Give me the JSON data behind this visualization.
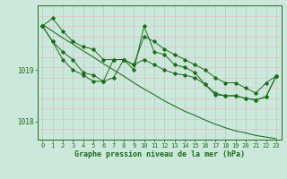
{
  "xlabel": "Graphe pression niveau de la mer (hPa)",
  "hours": [
    0,
    1,
    2,
    3,
    4,
    5,
    6,
    7,
    8,
    9,
    10,
    11,
    12,
    13,
    14,
    15,
    16,
    17,
    18,
    19,
    20,
    21,
    22,
    23
  ],
  "series_top": [
    1019.85,
    1020.0,
    1019.75,
    1019.55,
    1019.45,
    1019.4,
    1019.2,
    1019.2,
    1019.2,
    1019.1,
    1019.65,
    1019.55,
    1019.4,
    1019.3,
    1019.2,
    1019.1,
    1019.0,
    1018.85,
    1018.75,
    1018.75,
    1018.65,
    1018.55,
    1018.75,
    1018.88
  ],
  "series_mid": [
    1019.85,
    1019.55,
    1019.35,
    1019.2,
    1018.95,
    1018.9,
    1018.78,
    1019.2,
    1019.2,
    1019.1,
    1019.2,
    1019.1,
    1019.0,
    1018.93,
    1018.9,
    1018.85,
    1018.72,
    1018.55,
    1018.5,
    1018.5,
    1018.45,
    1018.42,
    1018.48,
    1018.88
  ],
  "series_jagged": [
    1019.85,
    1019.55,
    1019.2,
    1019.0,
    1018.9,
    1018.78,
    1018.78,
    1018.85,
    1019.2,
    1019.0,
    1019.85,
    1019.35,
    1019.3,
    1019.1,
    1019.05,
    1018.95,
    1018.72,
    1018.52,
    1018.5,
    1018.5,
    1018.45,
    1018.42,
    1018.48,
    1018.88
  ],
  "trend": [
    1019.88,
    1019.75,
    1019.62,
    1019.5,
    1019.37,
    1019.25,
    1019.12,
    1019.0,
    1018.88,
    1018.75,
    1018.63,
    1018.52,
    1018.4,
    1018.3,
    1018.2,
    1018.12,
    1018.03,
    1017.95,
    1017.88,
    1017.82,
    1017.78,
    1017.73,
    1017.7,
    1017.67
  ],
  "line_color": "#1a6e1a",
  "bg_color": "#cce8dc",
  "grid_color_v": "#aacfbc",
  "grid_color_h": "#e8c0c0",
  "ylim_min": 1017.65,
  "ylim_max": 1020.25,
  "yticks": [
    1018,
    1019
  ],
  "marker": "D",
  "marker_size": 1.8,
  "linewidth": 0.7,
  "tick_fontsize": 5.0,
  "xlabel_fontsize": 6.0
}
